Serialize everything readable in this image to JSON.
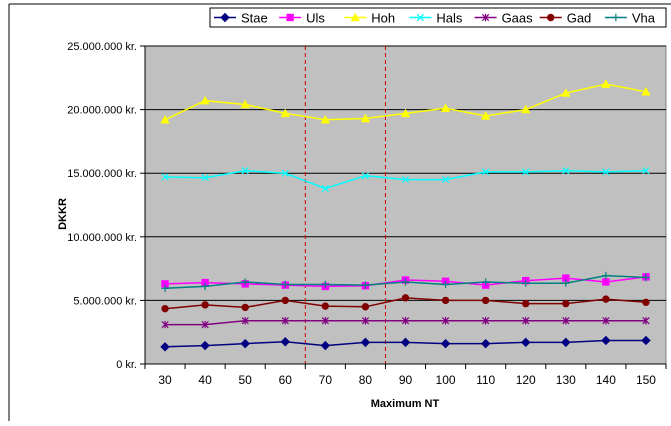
{
  "chart_data": {
    "type": "line",
    "xlabel": "Maximum NT",
    "ylabel": "DKKR",
    "categories": [
      "30",
      "40",
      "50",
      "60",
      "70",
      "80",
      "90",
      "100",
      "110",
      "120",
      "130",
      "140",
      "150"
    ],
    "ylim": [
      0,
      25000000
    ],
    "yticks": [
      0,
      5000000,
      10000000,
      15000000,
      20000000,
      25000000
    ],
    "ytick_labels": [
      "0 kr.",
      "5.000.000 kr.",
      "10.000.000 kr.",
      "15.000.000 kr.",
      "20.000.000 kr.",
      "25.000.000 kr."
    ],
    "grid": "horizontal",
    "legend_position": "top",
    "plot_background": "#c0c0c0",
    "reference_lines": {
      "color": "#cc0000",
      "style": "dashed",
      "between_categories": [
        [
          "60",
          "70"
        ],
        [
          "80",
          "90"
        ]
      ]
    },
    "series": [
      {
        "name": "Stae",
        "color": "#000080",
        "marker": "diamond",
        "values": [
          1350000,
          1450000,
          1600000,
          1750000,
          1450000,
          1700000,
          1700000,
          1600000,
          1600000,
          1700000,
          1700000,
          1850000,
          1850000
        ]
      },
      {
        "name": "Uls",
        "color": "#ff00ff",
        "marker": "square",
        "values": [
          6300000,
          6400000,
          6300000,
          6200000,
          6100000,
          6150000,
          6600000,
          6500000,
          6200000,
          6550000,
          6750000,
          6450000,
          6850000
        ]
      },
      {
        "name": "Hoh",
        "color": "#ffff00",
        "marker": "triangle",
        "values": [
          19200000,
          20700000,
          20400000,
          19700000,
          19200000,
          19300000,
          19700000,
          20100000,
          19500000,
          20000000,
          21300000,
          22000000,
          21400000
        ]
      },
      {
        "name": "Hals",
        "color": "#00ffff",
        "marker": "x",
        "values": [
          14700000,
          14650000,
          15200000,
          15000000,
          13800000,
          14800000,
          14500000,
          14500000,
          15100000,
          15100000,
          15200000,
          15100000,
          15200000
        ]
      },
      {
        "name": "Gaas",
        "color": "#800080",
        "marker": "star",
        "values": [
          3100000,
          3100000,
          3400000,
          3400000,
          3400000,
          3400000,
          3400000,
          3400000,
          3400000,
          3400000,
          3400000,
          3400000,
          3400000
        ]
      },
      {
        "name": "Gad",
        "color": "#800000",
        "marker": "circle",
        "values": [
          4350000,
          4650000,
          4450000,
          5000000,
          4550000,
          4500000,
          5200000,
          5000000,
          5000000,
          4750000,
          4750000,
          5100000,
          4850000
        ]
      },
      {
        "name": "Vha",
        "color": "#008080",
        "marker": "plus",
        "values": [
          5950000,
          6100000,
          6450000,
          6250000,
          6250000,
          6200000,
          6450000,
          6250000,
          6450000,
          6350000,
          6350000,
          6950000,
          6800000
        ]
      }
    ]
  }
}
